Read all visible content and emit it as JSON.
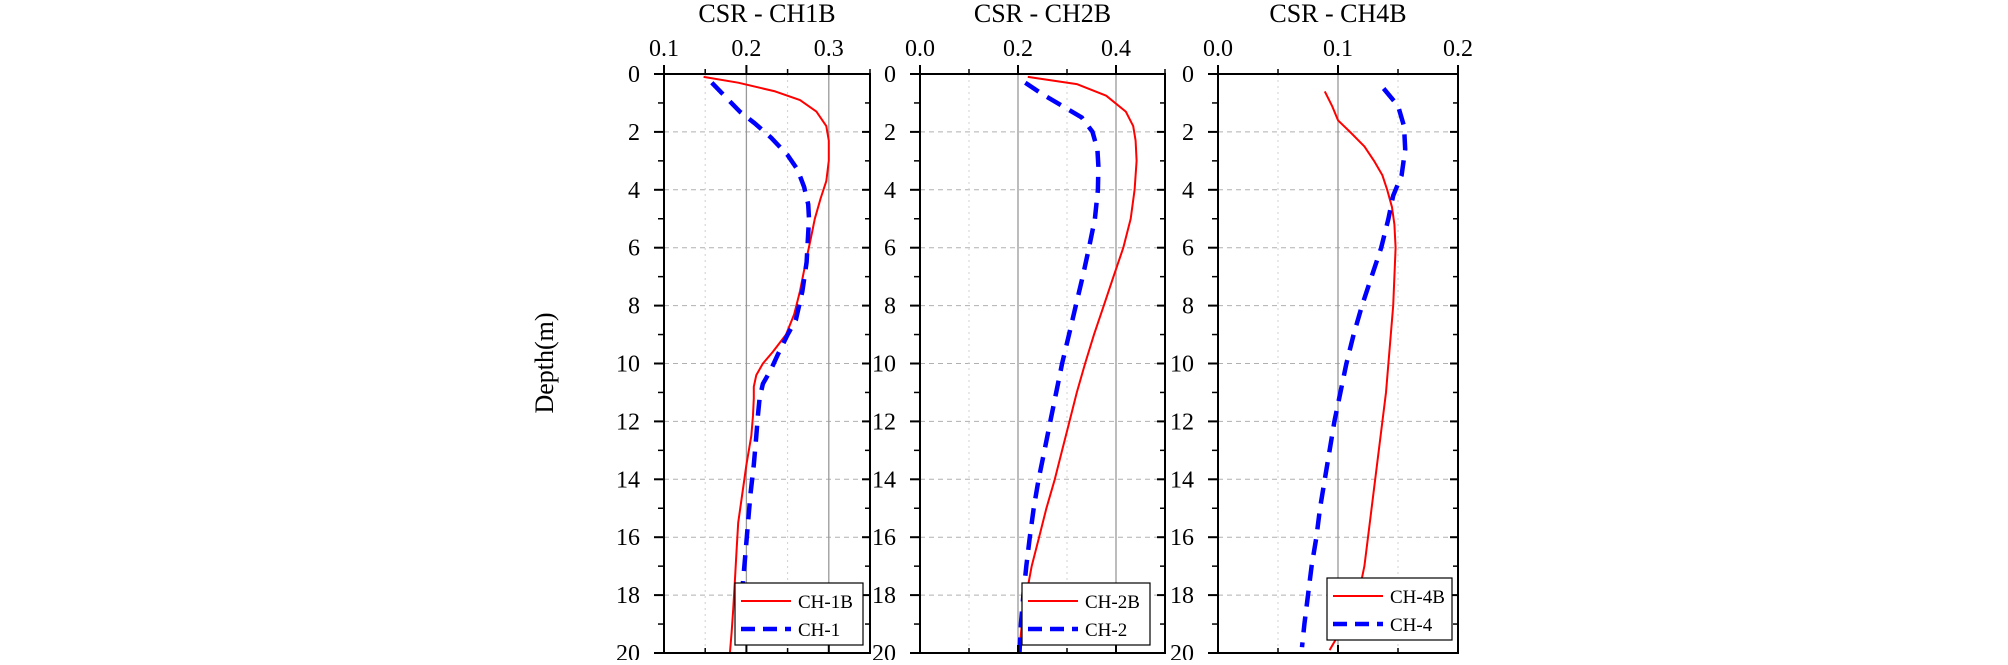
{
  "colors": {
    "series_a": "#ff0000",
    "series_b": "#0000ff",
    "grid": "#b0b0b0",
    "ref_line": "#999999"
  },
  "shared": {
    "ylabel": "Depth(m)",
    "y_ticks": [
      "0",
      "2",
      "4",
      "6",
      "8",
      "10",
      "12",
      "14",
      "16",
      "18",
      "20"
    ]
  },
  "chart_data": [
    {
      "type": "line",
      "title": "CSR - CH1B",
      "xlabel": "",
      "ylabel": "Depth(m)",
      "x_axis_position": "top",
      "xlim": [
        0.1,
        0.35
      ],
      "x_ticks": [
        "0.1",
        "0.2",
        "0.3"
      ],
      "ylim": [
        0,
        20
      ],
      "y_inverted": true,
      "grid": true,
      "legend_position": "bottom-right",
      "series": [
        {
          "name": "CH-1B",
          "style": "solid",
          "points": [
            [
              0.148,
              0.1
            ],
            [
              0.19,
              0.3
            ],
            [
              0.235,
              0.6
            ],
            [
              0.265,
              0.9
            ],
            [
              0.285,
              1.3
            ],
            [
              0.297,
              1.8
            ],
            [
              0.3,
              2.3
            ],
            [
              0.3,
              3.0
            ],
            [
              0.297,
              3.7
            ],
            [
              0.29,
              4.3
            ],
            [
              0.283,
              5.0
            ],
            [
              0.278,
              5.7
            ],
            [
              0.272,
              6.5
            ],
            [
              0.265,
              7.5
            ],
            [
              0.258,
              8.3
            ],
            [
              0.248,
              9.0
            ],
            [
              0.232,
              9.6
            ],
            [
              0.22,
              10.0
            ],
            [
              0.212,
              10.4
            ],
            [
              0.209,
              10.8
            ],
            [
              0.209,
              11.2
            ],
            [
              0.208,
              11.8
            ],
            [
              0.206,
              12.5
            ],
            [
              0.2,
              13.5
            ],
            [
              0.195,
              14.5
            ],
            [
              0.19,
              15.5
            ],
            [
              0.188,
              16.5
            ],
            [
              0.186,
              17.5
            ],
            [
              0.184,
              18.5
            ],
            [
              0.182,
              19.3
            ],
            [
              0.18,
              20.0
            ]
          ]
        },
        {
          "name": "CH-1",
          "style": "dashed",
          "points": [
            [
              0.158,
              0.3
            ],
            [
              0.175,
              0.8
            ],
            [
              0.192,
              1.3
            ],
            [
              0.21,
              1.7
            ],
            [
              0.23,
              2.2
            ],
            [
              0.25,
              2.8
            ],
            [
              0.262,
              3.3
            ],
            [
              0.27,
              3.9
            ],
            [
              0.275,
              4.5
            ],
            [
              0.276,
              5.0
            ],
            [
              0.275,
              5.5
            ],
            [
              0.273,
              6.5
            ],
            [
              0.268,
              7.5
            ],
            [
              0.26,
              8.5
            ],
            [
              0.25,
              9.0
            ],
            [
              0.238,
              9.7
            ],
            [
              0.23,
              10.2
            ],
            [
              0.22,
              10.7
            ],
            [
              0.216,
              11.2
            ],
            [
              0.214,
              11.8
            ],
            [
              0.212,
              12.5
            ],
            [
              0.209,
              13.5
            ],
            [
              0.205,
              14.5
            ],
            [
              0.202,
              15.5
            ],
            [
              0.199,
              16.5
            ],
            [
              0.196,
              17.5
            ],
            [
              0.193,
              18.5
            ],
            [
              0.19,
              19.2
            ]
          ]
        }
      ]
    },
    {
      "type": "line",
      "title": "CSR - CH2B",
      "xlabel": "",
      "ylabel": "",
      "x_axis_position": "top",
      "xlim": [
        0.0,
        0.5
      ],
      "x_ticks": [
        "0.0",
        "0.2",
        "0.4"
      ],
      "ylim": [
        0,
        20
      ],
      "y_inverted": true,
      "grid": true,
      "legend_position": "bottom-right",
      "series": [
        {
          "name": "CH-2B",
          "style": "solid",
          "points": [
            [
              0.22,
              0.1
            ],
            [
              0.32,
              0.35
            ],
            [
              0.38,
              0.75
            ],
            [
              0.42,
              1.3
            ],
            [
              0.435,
              1.8
            ],
            [
              0.44,
              2.3
            ],
            [
              0.442,
              3.0
            ],
            [
              0.438,
              4.0
            ],
            [
              0.43,
              5.0
            ],
            [
              0.415,
              6.0
            ],
            [
              0.395,
              7.0
            ],
            [
              0.375,
              8.0
            ],
            [
              0.355,
              9.0
            ],
            [
              0.337,
              10.0
            ],
            [
              0.32,
              11.0
            ],
            [
              0.305,
              12.0
            ],
            [
              0.29,
              13.0
            ],
            [
              0.275,
              14.0
            ],
            [
              0.258,
              15.0
            ],
            [
              0.243,
              16.0
            ],
            [
              0.228,
              17.0
            ],
            [
              0.217,
              18.0
            ],
            [
              0.208,
              19.0
            ],
            [
              0.202,
              20.0
            ]
          ]
        },
        {
          "name": "CH-2",
          "style": "dashed",
          "points": [
            [
              0.215,
              0.3
            ],
            [
              0.25,
              0.7
            ],
            [
              0.29,
              1.1
            ],
            [
              0.33,
              1.5
            ],
            [
              0.352,
              2.0
            ],
            [
              0.362,
              2.6
            ],
            [
              0.364,
              3.2
            ],
            [
              0.363,
              4.0
            ],
            [
              0.357,
              5.0
            ],
            [
              0.345,
              6.0
            ],
            [
              0.332,
              7.0
            ],
            [
              0.318,
              8.0
            ],
            [
              0.304,
              9.0
            ],
            [
              0.29,
              10.0
            ],
            [
              0.278,
              11.0
            ],
            [
              0.266,
              12.0
            ],
            [
              0.254,
              13.0
            ],
            [
              0.242,
              14.0
            ],
            [
              0.232,
              15.0
            ],
            [
              0.224,
              16.0
            ],
            [
              0.217,
              17.0
            ],
            [
              0.211,
              18.0
            ],
            [
              0.206,
              19.0
            ],
            [
              0.203,
              20.0
            ]
          ]
        }
      ]
    },
    {
      "type": "line",
      "title": "CSR - CH4B",
      "xlabel": "",
      "ylabel": "",
      "x_axis_position": "top",
      "xlim": [
        0.0,
        0.2
      ],
      "x_ticks": [
        "0.0",
        "0.1",
        "0.2"
      ],
      "ylim": [
        0,
        20
      ],
      "y_inverted": true,
      "grid": true,
      "legend_position": "bottom-left",
      "series": [
        {
          "name": "CH-4B",
          "style": "solid",
          "points": [
            [
              0.089,
              0.6
            ],
            [
              0.095,
              1.1
            ],
            [
              0.1,
              1.6
            ],
            [
              0.11,
              2.0
            ],
            [
              0.122,
              2.5
            ],
            [
              0.13,
              3.0
            ],
            [
              0.137,
              3.5
            ],
            [
              0.141,
              4.0
            ],
            [
              0.145,
              4.6
            ],
            [
              0.147,
              5.2
            ],
            [
              0.148,
              6.0
            ],
            [
              0.147,
              7.0
            ],
            [
              0.146,
              8.0
            ],
            [
              0.144,
              9.0
            ],
            [
              0.142,
              10.0
            ],
            [
              0.14,
              11.0
            ],
            [
              0.137,
              12.0
            ],
            [
              0.134,
              13.0
            ],
            [
              0.131,
              14.0
            ],
            [
              0.128,
              15.0
            ],
            [
              0.125,
              16.0
            ],
            [
              0.122,
              17.0
            ],
            [
              0.117,
              18.0
            ],
            [
              0.11,
              18.8
            ],
            [
              0.1,
              19.4
            ],
            [
              0.093,
              19.9
            ]
          ]
        },
        {
          "name": "CH-4",
          "style": "dashed",
          "points": [
            [
              0.138,
              0.5
            ],
            [
              0.15,
              1.1
            ],
            [
              0.155,
              1.8
            ],
            [
              0.156,
              2.6
            ],
            [
              0.153,
              3.5
            ],
            [
              0.146,
              4.2
            ],
            [
              0.142,
              5.0
            ],
            [
              0.136,
              6.0
            ],
            [
              0.128,
              7.0
            ],
            [
              0.12,
              8.0
            ],
            [
              0.113,
              9.0
            ],
            [
              0.107,
              10.0
            ],
            [
              0.102,
              11.0
            ],
            [
              0.097,
              12.0
            ],
            [
              0.093,
              13.0
            ],
            [
              0.089,
              14.0
            ],
            [
              0.085,
              15.0
            ],
            [
              0.082,
              16.0
            ],
            [
              0.078,
              17.0
            ],
            [
              0.075,
              18.0
            ],
            [
              0.072,
              19.0
            ],
            [
              0.07,
              19.8
            ]
          ]
        }
      ]
    }
  ]
}
